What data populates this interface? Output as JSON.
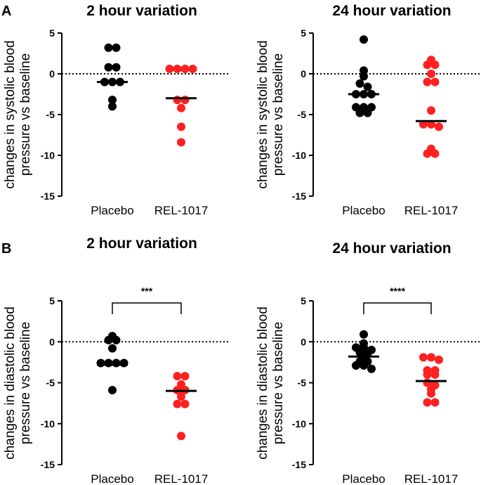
{
  "panels": [
    {
      "letter": "A"
    },
    {
      "letter": "B"
    }
  ],
  "chart_data": [
    {
      "type": "scatter",
      "panel": "A",
      "title": "2 hour variation",
      "ylabel_lines": [
        "changes in systolic blood",
        "pressure vs baseline"
      ],
      "ylim": [
        -15,
        5
      ],
      "yticks": [
        5,
        0,
        -5,
        -10,
        -15
      ],
      "categories": [
        "Placebo",
        "REL-1017"
      ],
      "baseline": 0,
      "series": [
        {
          "name": "Placebo",
          "color": "#000000",
          "values": [
            3.2,
            3.2,
            0.8,
            0.8,
            -1.0,
            -1.0,
            -1.0,
            -3.2,
            -4.0
          ],
          "mean": -1.0
        },
        {
          "name": "REL-1017",
          "color": "#ff2020",
          "values": [
            0.6,
            0.6,
            0.6,
            0.6,
            -3.2,
            -3.2,
            -4.2,
            -6.5,
            -8.4
          ],
          "mean": -3.0
        }
      ]
    },
    {
      "type": "scatter",
      "panel": "A",
      "title": "24 hour variation",
      "ylabel_lines": [
        "changes in systolic blood",
        "pressure vs baseline"
      ],
      "ylim": [
        -15,
        5
      ],
      "yticks": [
        5,
        0,
        -5,
        -10,
        -15
      ],
      "categories": [
        "Placebo",
        "REL-1017"
      ],
      "baseline": 0,
      "series": [
        {
          "name": "Placebo",
          "color": "#000000",
          "values": [
            4.2,
            0.4,
            -0.3,
            -1.2,
            -1.6,
            -2.5,
            -2.5,
            -2.5,
            -4.1,
            -4.1,
            -4.1,
            -4.8,
            -4.8
          ],
          "mean": -2.5
        },
        {
          "name": "REL-1017",
          "color": "#ff2020",
          "values": [
            1.7,
            1.1,
            1.1,
            0.0,
            -1.0,
            -1.0,
            -4.5,
            -6.2,
            -6.2,
            -6.5,
            -9.2,
            -9.8,
            -9.8
          ],
          "mean": -5.8
        }
      ]
    },
    {
      "type": "scatter",
      "panel": "B",
      "title": "2 hour variation",
      "ylabel_lines": [
        "changes in diastolic blood",
        "pressure vs baseline"
      ],
      "ylim": [
        -15,
        5
      ],
      "yticks": [
        5,
        0,
        -5,
        -10,
        -15
      ],
      "categories": [
        "Placebo",
        "REL-1017"
      ],
      "baseline": 0,
      "significance": "***",
      "series": [
        {
          "name": "Placebo",
          "color": "#000000",
          "values": [
            0.7,
            0.2,
            0.2,
            -0.8,
            -2.6,
            -2.6,
            -2.6,
            -2.6,
            -5.9
          ],
          "mean": -2.8
        },
        {
          "name": "REL-1017",
          "color": "#ff2020",
          "values": [
            -4.2,
            -4.2,
            -5.2,
            -5.9,
            -5.9,
            -6.7,
            -7.6,
            -7.6,
            -11.5
          ],
          "mean": -6.0
        }
      ]
    },
    {
      "type": "scatter",
      "panel": "B",
      "title": "24 hour variation",
      "ylabel_lines": [
        "changes in diastolic blood",
        "pressure vs baseline"
      ],
      "ylim": [
        -15,
        5
      ],
      "yticks": [
        5,
        0,
        -5,
        -10,
        -15
      ],
      "categories": [
        "Placebo",
        "REL-1017"
      ],
      "baseline": 0,
      "significance": "****",
      "series": [
        {
          "name": "Placebo",
          "color": "#000000",
          "values": [
            0.9,
            -0.2,
            -0.7,
            -0.7,
            -1.0,
            -1.3,
            -1.4,
            -1.9,
            -2.4,
            -2.4,
            -2.9,
            -2.9,
            -3.3
          ],
          "mean": -1.8
        },
        {
          "name": "REL-1017",
          "color": "#ff2020",
          "values": [
            -1.9,
            -1.9,
            -2.2,
            -3.5,
            -3.5,
            -4.0,
            -4.0,
            -5.0,
            -5.3,
            -5.8,
            -6.3,
            -7.4,
            -7.4
          ],
          "mean": -4.8
        }
      ]
    }
  ]
}
